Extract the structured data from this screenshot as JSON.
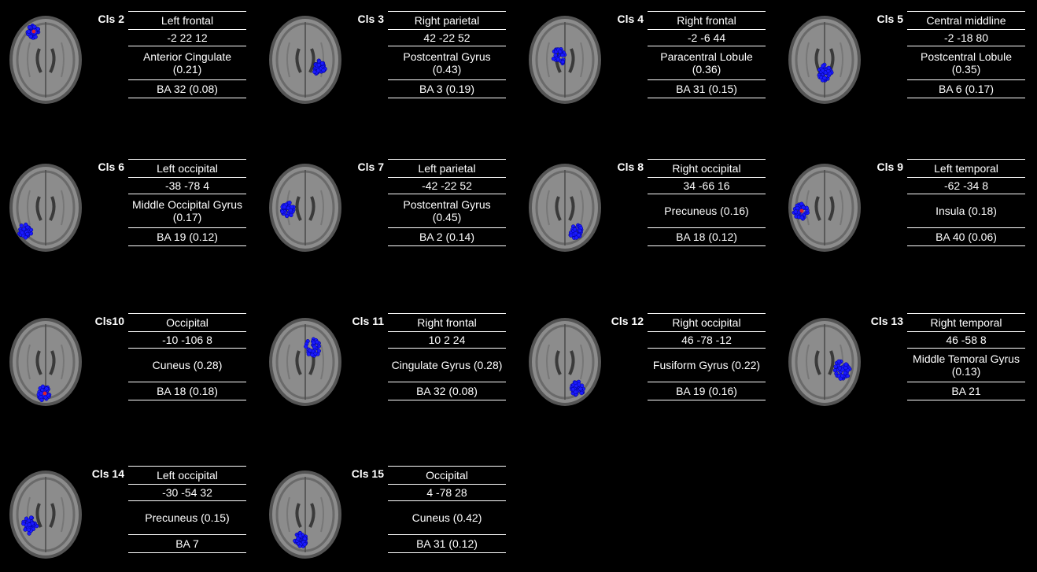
{
  "clusters": [
    {
      "label": "Cls 2",
      "region": "Left frontal",
      "coords": "-2 22 12",
      "structure": "Anterior Cingulate (0.21)",
      "ba": "BA 32 (0.08)",
      "blob": "frontal-left"
    },
    {
      "label": "Cls 3",
      "region": "Right parietal",
      "coords": "42 -22 52",
      "structure": "Postcentral Gyrus (0.43)",
      "ba": "BA 3 (0.19)",
      "blob": "parietal-right"
    },
    {
      "label": "Cls 4",
      "region": "Right frontal",
      "coords": "-2 -6 44",
      "structure": "Paracentral Lobule (0.36)",
      "ba": "BA 31 (0.15)",
      "blob": "central-upper"
    },
    {
      "label": "Cls 5",
      "region": "Central middline",
      "coords": "-2 -18 80",
      "structure": "Postcentral Lobule (0.35)",
      "ba": "BA 6 (0.17)",
      "blob": "central-mid"
    },
    {
      "label": "Cls 6",
      "region": "Left occipital",
      "coords": "-38 -78 4",
      "structure": "Middle Occipital Gyrus (0.17)",
      "ba": "BA 19 (0.12)",
      "blob": "occipital-left-low"
    },
    {
      "label": "Cls 7",
      "region": "Left parietal",
      "coords": "-42 -22 52",
      "structure": "Postcentral Gyrus (0.45)",
      "ba": "BA 2 (0.14)",
      "blob": "parietal-left"
    },
    {
      "label": "Cls 8",
      "region": "Right occipital",
      "coords": "34 -66 16",
      "structure": "Precuneus (0.16)",
      "ba": "BA 18 (0.12)",
      "blob": "occipital-right"
    },
    {
      "label": "Cls 9",
      "region": "Left temporal",
      "coords": "-62 -34 8",
      "structure": "Insula (0.18)",
      "ba": "BA 40 (0.06)",
      "blob": "temporal-left"
    },
    {
      "label": "Cls10",
      "region": "Occipital",
      "coords": "-10 -106 8",
      "structure": "Cuneus (0.28)",
      "ba": "BA 18 (0.18)",
      "blob": "occipital-center"
    },
    {
      "label": "Cls 11",
      "region": "Right frontal",
      "coords": "10 2 24",
      "structure": "Cingulate Gyrus (0.28)",
      "ba": "BA 32 (0.08)",
      "blob": "frontal-right"
    },
    {
      "label": "Cls 12",
      "region": "Right occipital",
      "coords": "46 -78 -12",
      "structure": "Fusiform Gyrus (0.22)",
      "ba": "BA 19 (0.16)",
      "blob": "occipital-right-low"
    },
    {
      "label": "Cls 13",
      "region": "Right temporal",
      "coords": "46 -58 8",
      "structure": "Middle Temoral Gyrus (0.13)",
      "ba": "BA 21",
      "blob": "temporal-right"
    },
    {
      "label": "Cls 14",
      "region": "Left occipital",
      "coords": "-30 -54 32",
      "structure": "Precuneus (0.15)",
      "ba": "BA 7",
      "blob": "occipital-left"
    },
    {
      "label": "Cls 15",
      "region": "Occipital",
      "coords": "4 -78 28",
      "structure": "Cuneus (0.42)",
      "ba": "BA 31 (0.12)",
      "blob": "occipital-mid"
    }
  ],
  "colors": {
    "dot": "#1a1aff",
    "dot_stroke": "#00008a",
    "accent_dot": "#e0202a",
    "brain_bg": "#8c8c8c"
  }
}
